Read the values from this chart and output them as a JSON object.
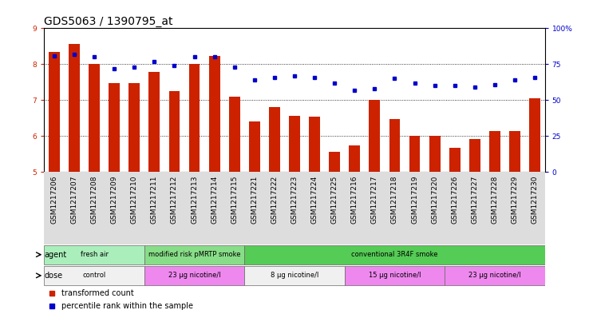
{
  "title": "GDS5063 / 1390795_at",
  "samples": [
    "GSM1217206",
    "GSM1217207",
    "GSM1217208",
    "GSM1217209",
    "GSM1217210",
    "GSM1217211",
    "GSM1217212",
    "GSM1217213",
    "GSM1217214",
    "GSM1217215",
    "GSM1217221",
    "GSM1217222",
    "GSM1217223",
    "GSM1217224",
    "GSM1217225",
    "GSM1217216",
    "GSM1217217",
    "GSM1217218",
    "GSM1217219",
    "GSM1217220",
    "GSM1217226",
    "GSM1217227",
    "GSM1217228",
    "GSM1217229",
    "GSM1217230"
  ],
  "transformed_count": [
    8.35,
    8.57,
    8.02,
    7.47,
    7.47,
    7.78,
    7.25,
    8.02,
    8.22,
    7.1,
    6.42,
    6.82,
    6.57,
    6.55,
    5.57,
    5.75,
    7.02,
    6.47,
    6.02,
    6.02,
    5.67,
    5.92,
    6.15,
    6.15,
    7.05
  ],
  "percentile_rank": [
    81,
    82,
    80,
    72,
    73,
    77,
    74,
    80,
    80,
    73,
    64,
    66,
    67,
    66,
    62,
    57,
    58,
    65,
    62,
    60,
    60,
    59,
    61,
    64,
    66
  ],
  "ylim_left": [
    5,
    9
  ],
  "ylim_right": [
    0,
    100
  ],
  "yticks_left": [
    5,
    6,
    7,
    8,
    9
  ],
  "yticks_right": [
    0,
    25,
    50,
    75,
    100
  ],
  "yticklabels_right": [
    "0",
    "25",
    "50",
    "75",
    "100%"
  ],
  "bar_color": "#cc2200",
  "dot_color": "#0000cc",
  "agent_groups": [
    {
      "label": "fresh air",
      "start": 0,
      "end": 5,
      "color": "#aaeebb"
    },
    {
      "label": "modified risk pMRTP smoke",
      "start": 5,
      "end": 10,
      "color": "#88dd88"
    },
    {
      "label": "conventional 3R4F smoke",
      "start": 10,
      "end": 25,
      "color": "#55cc55"
    }
  ],
  "dose_groups": [
    {
      "label": "control",
      "start": 0,
      "end": 5,
      "color": "#f0f0f0"
    },
    {
      "label": "23 µg nicotine/l",
      "start": 5,
      "end": 10,
      "color": "#ee88ee"
    },
    {
      "label": "8 µg nicotine/l",
      "start": 10,
      "end": 15,
      "color": "#f0f0f0"
    },
    {
      "label": "15 µg nicotine/l",
      "start": 15,
      "end": 20,
      "color": "#ee88ee"
    },
    {
      "label": "23 µg nicotine/l",
      "start": 20,
      "end": 25,
      "color": "#ee88ee"
    }
  ],
  "xtick_bg_color": "#dddddd",
  "background_color": "#ffffff",
  "title_fontsize": 10,
  "tick_fontsize": 6.5,
  "bar_width": 0.55
}
